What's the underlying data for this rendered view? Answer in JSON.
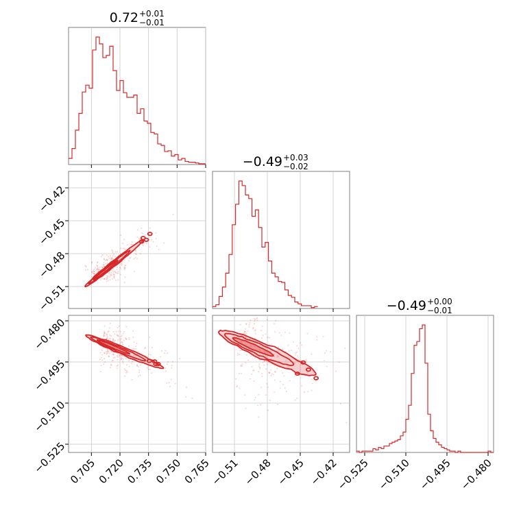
{
  "colors": {
    "series": "#d62728",
    "grid": "#c8c8c8",
    "frame": "#7f7f7f"
  },
  "chart_data": {
    "type": "corner",
    "parameters": [
      {
        "title_value": "0.72",
        "title_plus": "+0.01",
        "title_minus": "−0.01",
        "range": [
          0.693,
          0.765
        ],
        "ticks": [
          0.705,
          0.72,
          0.735,
          0.75,
          0.765
        ],
        "tick_labels": [
          "0.705",
          "0.720",
          "0.735",
          "0.750",
          "0.765"
        ],
        "hist": {
          "bin_start": 0.693,
          "bin_width": 0.0018,
          "counts": [
            8,
            21,
            45,
            67,
            95,
            104,
            100,
            150,
            167,
            158,
            140,
            143,
            155,
            123,
            97,
            110,
            94,
            88,
            88,
            91,
            67,
            73,
            57,
            54,
            42,
            40,
            27,
            25,
            17,
            18,
            11,
            13,
            6,
            8,
            4,
            3,
            3,
            2,
            1,
            1
          ]
        }
      },
      {
        "title_value": "−0.49",
        "title_plus": "+0.03",
        "title_minus": "−0.02",
        "range": [
          -0.53,
          -0.405
        ],
        "ticks": [
          -0.51,
          -0.48,
          -0.45,
          -0.42
        ],
        "tick_labels": [
          "−0.51",
          "−0.48",
          "−0.45",
          "−0.42"
        ],
        "hist": {
          "bin_start": -0.53,
          "bin_width": 0.003,
          "counts": [
            2,
            4,
            13,
            23,
            38,
            58,
            90,
            112,
            137,
            132,
            122,
            118,
            99,
            106,
            87,
            66,
            71,
            51,
            38,
            34,
            29,
            28,
            20,
            14,
            12,
            7,
            5,
            3,
            3,
            3,
            1,
            2
          ]
        }
      },
      {
        "title_value": "−0.49",
        "title_plus": "+0.00",
        "title_minus": "−0.01",
        "range": [
          -0.528,
          -0.478
        ],
        "ticks": [
          -0.525,
          -0.51,
          -0.495,
          -0.48
        ],
        "tick_labels": [
          "−0.525",
          "−0.510",
          "−0.495",
          "−0.480"
        ],
        "hist": {
          "bin_start": -0.528,
          "bin_width": 0.001,
          "counts": [
            1,
            0,
            1,
            1,
            1,
            1,
            3,
            2,
            4,
            3,
            5,
            5,
            7,
            8,
            9,
            10,
            13,
            16,
            26,
            37,
            62,
            84,
            87,
            97,
            100,
            70,
            30,
            17,
            11,
            8,
            6,
            4,
            3,
            2,
            1,
            1,
            0,
            1,
            0,
            0,
            0,
            0,
            0,
            0,
            0,
            0,
            0,
            0,
            1,
            0
          ]
        }
      }
    ],
    "pairs": [
      {
        "x_param": 0,
        "y_param": 1,
        "correlation": "positive",
        "center": [
          0.7125,
          -0.495
        ],
        "direction": [
          0.00635,
          0.0089
        ]
      },
      {
        "x_param": 0,
        "y_param": 2,
        "correlation": "negative",
        "center": [
          0.7165,
          -0.4895
        ],
        "direction": [
          0.0085,
          -0.0025
        ]
      },
      {
        "x_param": 1,
        "y_param": 2,
        "correlation": "negative",
        "center": [
          -0.493,
          -0.4895
        ],
        "direction": [
          0.0185,
          -0.0032
        ]
      }
    ]
  }
}
